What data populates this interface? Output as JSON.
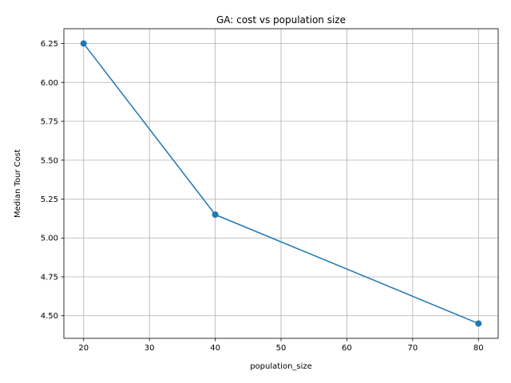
{
  "chart_data": {
    "type": "line",
    "title": "GA: cost vs population size",
    "xlabel": "population_size",
    "ylabel": "Median Tour Cost",
    "x": [
      20,
      40,
      80
    ],
    "series": [
      {
        "values": [
          6.25,
          5.15,
          4.45
        ],
        "color": "#1f77b4",
        "marker": "circle"
      }
    ],
    "xlim": [
      17,
      83
    ],
    "ylim": [
      4.355,
      6.345
    ],
    "xticks": [
      20,
      30,
      40,
      50,
      60,
      70,
      80
    ],
    "xtick_labels": [
      "20",
      "30",
      "40",
      "50",
      "60",
      "70",
      "80"
    ],
    "yticks": [
      4.5,
      4.75,
      5.0,
      5.25,
      5.5,
      5.75,
      6.0,
      6.25
    ],
    "ytick_labels": [
      "4.50",
      "4.75",
      "5.00",
      "5.25",
      "5.50",
      "5.75",
      "6.00",
      "6.25"
    ],
    "grid": true,
    "legend": false
  }
}
